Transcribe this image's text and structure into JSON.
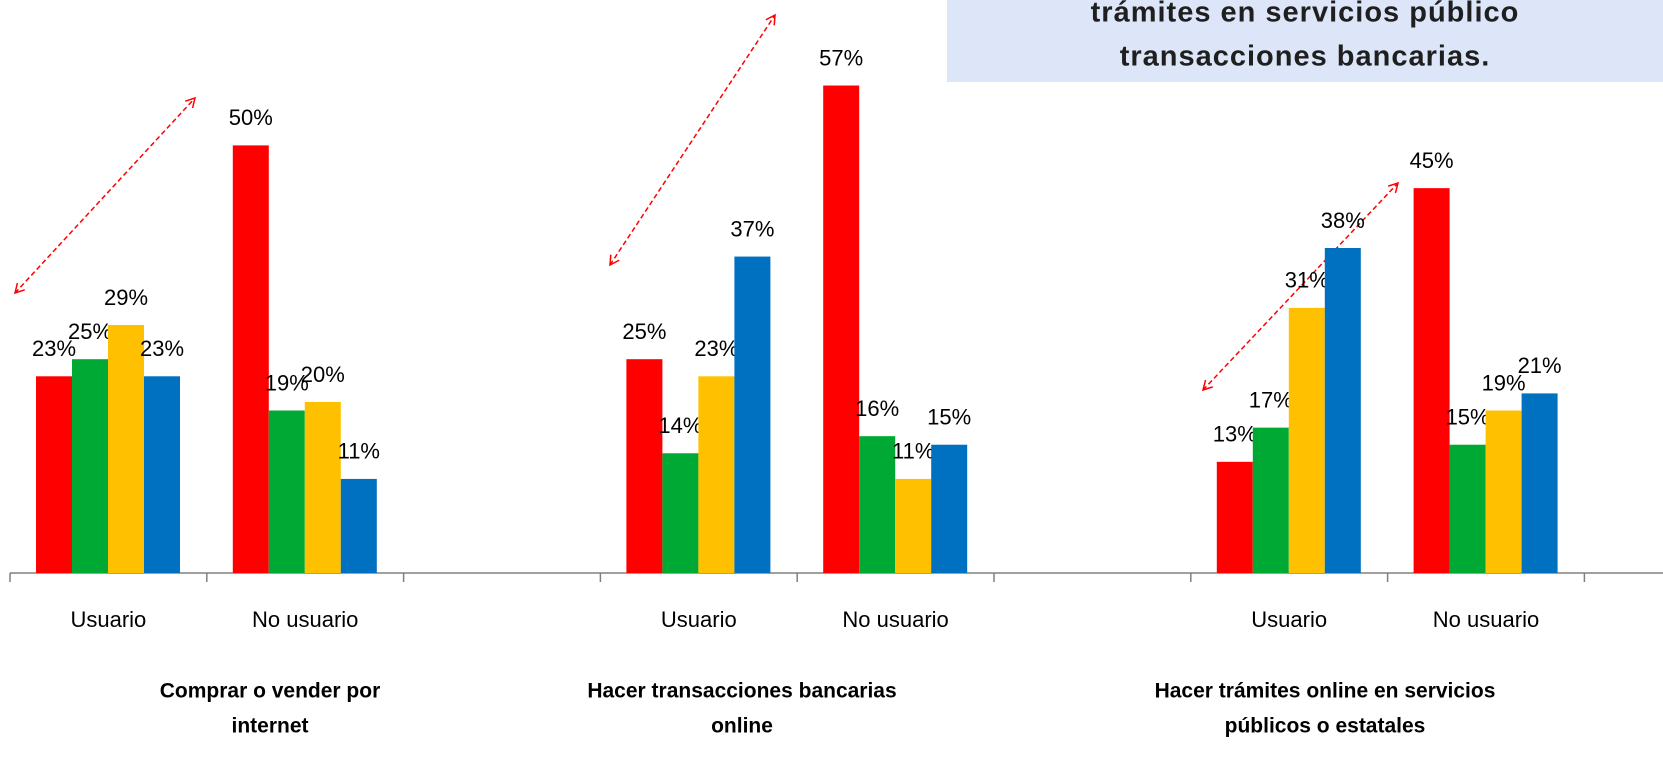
{
  "chart_data": {
    "type": "bar",
    "annotation": [
      "trámites en servicios público",
      "transacciones bancarias."
    ],
    "categories": [
      "Usuario",
      "No usuario",
      null,
      "Usuario",
      "No usuario",
      null,
      "Usuario",
      "No usuario"
    ],
    "series": [
      {
        "color": "#ff0000",
        "values": [
          23,
          50,
          null,
          25,
          57,
          null,
          13,
          45
        ],
        "value_labels": [
          "23%",
          "50%",
          null,
          "25%",
          "57%",
          null,
          "13%",
          "45%"
        ]
      },
      {
        "color": "#00a933",
        "values": [
          25,
          19,
          null,
          14,
          16,
          null,
          17,
          15
        ],
        "value_labels": [
          "25%",
          "19%",
          null,
          "14%",
          "16%",
          null,
          "17%",
          "15%"
        ]
      },
      {
        "color": "#ffc000",
        "values": [
          29,
          20,
          null,
          23,
          11,
          null,
          31,
          19
        ],
        "value_labels": [
          "29%",
          "20%",
          null,
          "23%",
          "11%",
          null,
          "31%",
          "19%"
        ]
      },
      {
        "color": "#0070c0",
        "values": [
          23,
          11,
          null,
          37,
          15,
          null,
          38,
          21
        ],
        "value_labels": [
          "23%",
          "11%",
          null,
          "37%",
          "15%",
          null,
          "38%",
          "21%"
        ]
      }
    ],
    "panels": [
      [
        "Comprar o vender por",
        "internet"
      ],
      [
        "Hacer transacciones bancarias",
        "online"
      ],
      [
        "Hacer trámites online en servicios",
        "públicos o estatales"
      ]
    ],
    "ylim": [
      0,
      67
    ]
  }
}
